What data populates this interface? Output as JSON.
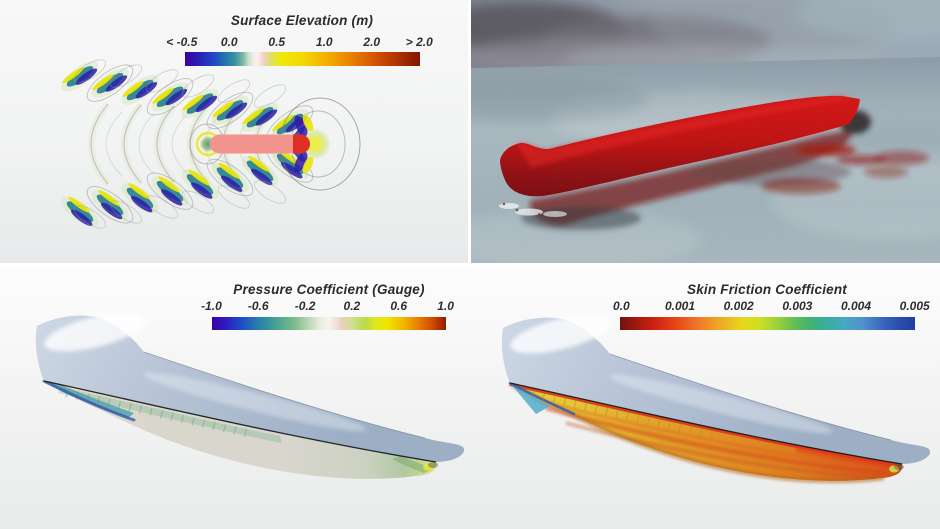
{
  "app": {
    "name": "Ship hydrodynamics CFD visualization",
    "layout": "four-viewport montage"
  },
  "colors": {
    "panel_background_top": "#f8f8f8",
    "panel_background_bottom": "#e9ebeb",
    "divider": "#ffffff",
    "render_hull_red": "#c41212",
    "sky_gray_blue": "#9aa8b4",
    "sea_gray_blue": "#a3b3bb",
    "hull_above_waterline": "#b6c3d5",
    "ship_planform_pink": "#f2938d",
    "ship_bow_tip_red": "#dd2f22",
    "legend_text": "#2b2b2b"
  },
  "panels": {
    "surface_elevation": {
      "title": "Surface Elevation (m)",
      "ticks": [
        "< -0.5",
        "0.0",
        "0.5",
        "1.0",
        "2.0",
        "> 2.0"
      ],
      "colorbar_stops": [
        {
          "c": "#3b009f",
          "p": 0
        },
        {
          "c": "#2a20b8",
          "p": 0.06
        },
        {
          "c": "#1e46c4",
          "p": 0.12
        },
        {
          "c": "#2373ae",
          "p": 0.17
        },
        {
          "c": "#35929e",
          "p": 0.21
        },
        {
          "c": "#7ab4a4",
          "p": 0.245
        },
        {
          "c": "#c8dfca",
          "p": 0.27
        },
        {
          "c": "#f4f1e8",
          "p": 0.295
        },
        {
          "c": "#f9efec",
          "p": 0.31
        },
        {
          "c": "#f3cfca",
          "p": 0.335
        },
        {
          "c": "#dce165",
          "p": 0.365
        },
        {
          "c": "#eee90a",
          "p": 0.41
        },
        {
          "c": "#f4d805",
          "p": 0.5
        },
        {
          "c": "#f3b100",
          "p": 0.6
        },
        {
          "c": "#ec8c00",
          "p": 0.68
        },
        {
          "c": "#e06a00",
          "p": 0.76
        },
        {
          "c": "#c94700",
          "p": 0.84
        },
        {
          "c": "#a82c00",
          "p": 0.92
        },
        {
          "c": "#7f1700",
          "p": 1
        }
      ]
    },
    "ship_render": {
      "description": "3D rendering of red ship hull floating on gray sea under overcast cloudy sky"
    },
    "pressure": {
      "title": "Pressure Coefficient (Gauge)",
      "ticks": [
        "-1.0",
        "-0.6",
        "-0.2",
        "0.2",
        "0.6",
        "1.0"
      ],
      "colorbar_stops": [
        {
          "c": "#3b00a8",
          "p": 0
        },
        {
          "c": "#2b1ec0",
          "p": 0.06
        },
        {
          "c": "#1e48c6",
          "p": 0.12
        },
        {
          "c": "#2574b2",
          "p": 0.18
        },
        {
          "c": "#35929e",
          "p": 0.24
        },
        {
          "c": "#57aa8e",
          "p": 0.3
        },
        {
          "c": "#86bd90",
          "p": 0.36
        },
        {
          "c": "#c2d9ba",
          "p": 0.42
        },
        {
          "c": "#eceee2",
          "p": 0.465
        },
        {
          "c": "#f7f3ef",
          "p": 0.5
        },
        {
          "c": "#f2dcd6",
          "p": 0.535
        },
        {
          "c": "#e9cfc0",
          "p": 0.555
        },
        {
          "c": "#cfe08e",
          "p": 0.6
        },
        {
          "c": "#b8dc4a",
          "p": 0.655
        },
        {
          "c": "#dfe81e",
          "p": 0.7
        },
        {
          "c": "#f2e400",
          "p": 0.75
        },
        {
          "c": "#f2b600",
          "p": 0.82
        },
        {
          "c": "#e98000",
          "p": 0.88
        },
        {
          "c": "#d14d00",
          "p": 0.94
        },
        {
          "c": "#8e1c00",
          "p": 1
        }
      ]
    },
    "friction": {
      "title": "Skin Friction Coefficient",
      "ticks": [
        "0.0",
        "0.001",
        "0.002",
        "0.003",
        "0.004",
        "0.005"
      ],
      "colorbar_stops": [
        {
          "c": "#6f1310",
          "p": 0
        },
        {
          "c": "#9c1810",
          "p": 0.05
        },
        {
          "c": "#c92012",
          "p": 0.11
        },
        {
          "c": "#e84617",
          "p": 0.19
        },
        {
          "c": "#f07b28",
          "p": 0.27
        },
        {
          "c": "#edaa24",
          "p": 0.34
        },
        {
          "c": "#ead41c",
          "p": 0.41
        },
        {
          "c": "#cfe020",
          "p": 0.47
        },
        {
          "c": "#9ed23a",
          "p": 0.53
        },
        {
          "c": "#66bd55",
          "p": 0.59
        },
        {
          "c": "#3fb276",
          "p": 0.65
        },
        {
          "c": "#39ad9c",
          "p": 0.7
        },
        {
          "c": "#47a9c2",
          "p": 0.76
        },
        {
          "c": "#4f93cd",
          "p": 0.82
        },
        {
          "c": "#3a66bd",
          "p": 0.89
        },
        {
          "c": "#2a4cae",
          "p": 0.95
        },
        {
          "c": "#223f9e",
          "p": 1
        }
      ]
    }
  },
  "chart_data": [
    {
      "type": "heatmap",
      "title": "Surface Elevation (m)",
      "units": "m",
      "tick_labels": [
        "< -0.5",
        "0.0",
        "0.5",
        "1.0",
        "2.0",
        "> 2.0"
      ],
      "legend_ticks": [
        -0.5,
        0.0,
        0.5,
        1.0,
        2.0,
        2.0
      ],
      "legend_position": "top-center",
      "description": "Top view contour field of free-surface elevation forming a Kelvin wake trailing left from the hull; hull planform drawn in pink with red bow tip at right; wake arms alternate deep blue (troughs), teal and yellow (crests) with gray contour outlines.",
      "colormap": [
        "#3b009f",
        "#1e46c4",
        "#35929e",
        "#c8dfca",
        "#f9efec",
        "#f3cfca",
        "#dce165",
        "#eee90a",
        "#f3b100",
        "#e06a00",
        "#a82c00",
        "#7f1700"
      ]
    },
    {
      "type": "heatmap",
      "title": "Pressure Coefficient (Gauge)",
      "tick_labels": [
        "-1.0",
        "-0.6",
        "-0.2",
        "0.2",
        "0.6",
        "1.0"
      ],
      "legend_ticks": [
        -1.0,
        -0.6,
        -0.2,
        0.2,
        0.6,
        1.0
      ],
      "legend_position": "top-center",
      "description": "Underwater view of hull colored by gauge pressure coefficient: mostly near-zero (pale gray) over the bottom, orange/yellow stagnation fan at the bow tip, teal/blue suction band along the forward bilge, green-yellow patch at the stern.",
      "colormap": [
        "#3b00a8",
        "#1e48c6",
        "#35929e",
        "#86bd90",
        "#f7f3ef",
        "#cfe08e",
        "#dfe81e",
        "#f2e400",
        "#e98000",
        "#8e1c00"
      ]
    },
    {
      "type": "heatmap",
      "title": "Skin Friction Coefficient",
      "tick_labels": [
        "0.0",
        "0.001",
        "0.002",
        "0.003",
        "0.004",
        "0.005"
      ],
      "legend_ticks": [
        0.0,
        0.001,
        0.002,
        0.003,
        0.004,
        0.005
      ],
      "legend_position": "top-center",
      "description": "Underwater view of hull colored by skin friction coefficient: yellow band near the bow waterline transitioning to orange/red over the wetted hull, cyan-blue fan at the bow tip, yellow-green spot at the stern.",
      "colormap": [
        "#6f1310",
        "#c92012",
        "#f07b28",
        "#ead41c",
        "#9ed23a",
        "#3fb276",
        "#47a9c2",
        "#3a66bd",
        "#223f9e"
      ]
    }
  ]
}
